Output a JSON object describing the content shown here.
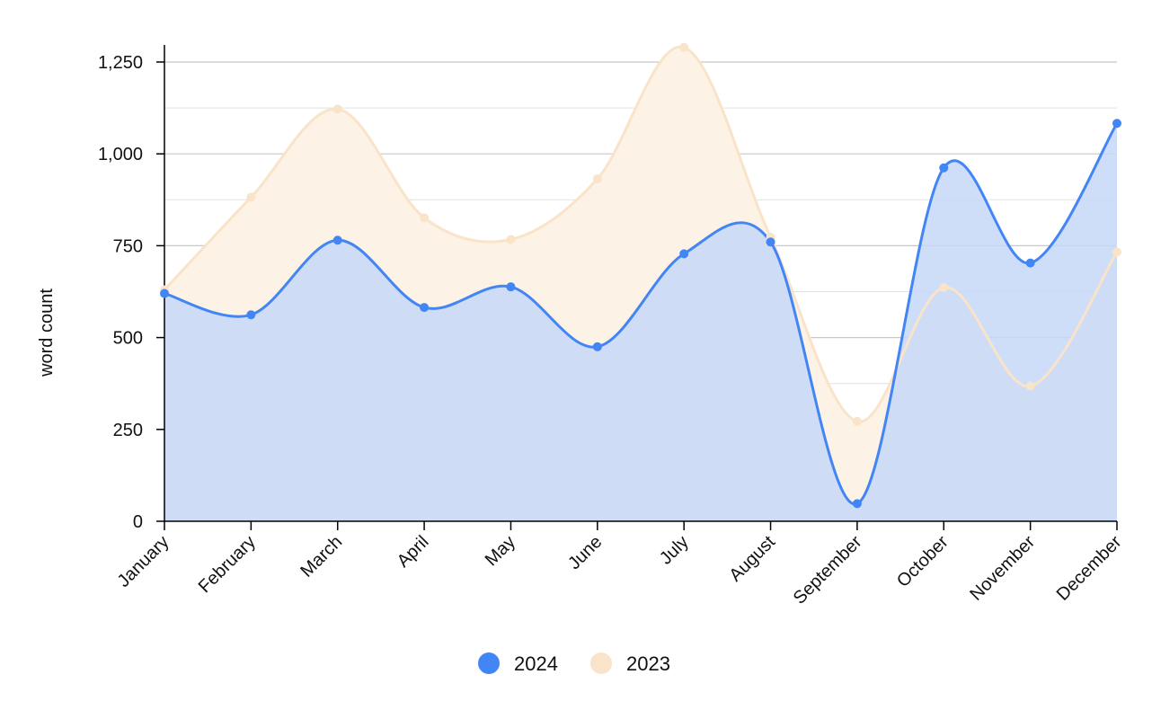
{
  "chart_data": {
    "type": "area",
    "categories": [
      "January",
      "February",
      "March",
      "April",
      "May",
      "June",
      "July",
      "August",
      "September",
      "October",
      "November",
      "December"
    ],
    "series": [
      {
        "name": "2024",
        "color": "#4285f4",
        "fill": "#c5d8f8",
        "values": [
          620,
          562,
          765,
          582,
          638,
          475,
          728,
          760,
          48,
          962,
          703,
          1083
        ]
      },
      {
        "name": "2023",
        "color": "#f9e3c9",
        "fill": "#fdf2e6",
        "values": [
          630,
          882,
          1122,
          826,
          767,
          932,
          1290,
          773,
          272,
          636,
          368,
          733
        ]
      }
    ],
    "overlap_fill": "#d5dcee",
    "xlabel": "",
    "ylabel": "word count",
    "ylim": [
      0,
      1250
    ],
    "yticks": [
      "0",
      "250",
      "500",
      "750",
      "1,000",
      "1,250"
    ],
    "ytick_values": [
      0,
      250,
      500,
      750,
      1000,
      1250
    ],
    "grid": true,
    "legend_position": "bottom-center"
  }
}
